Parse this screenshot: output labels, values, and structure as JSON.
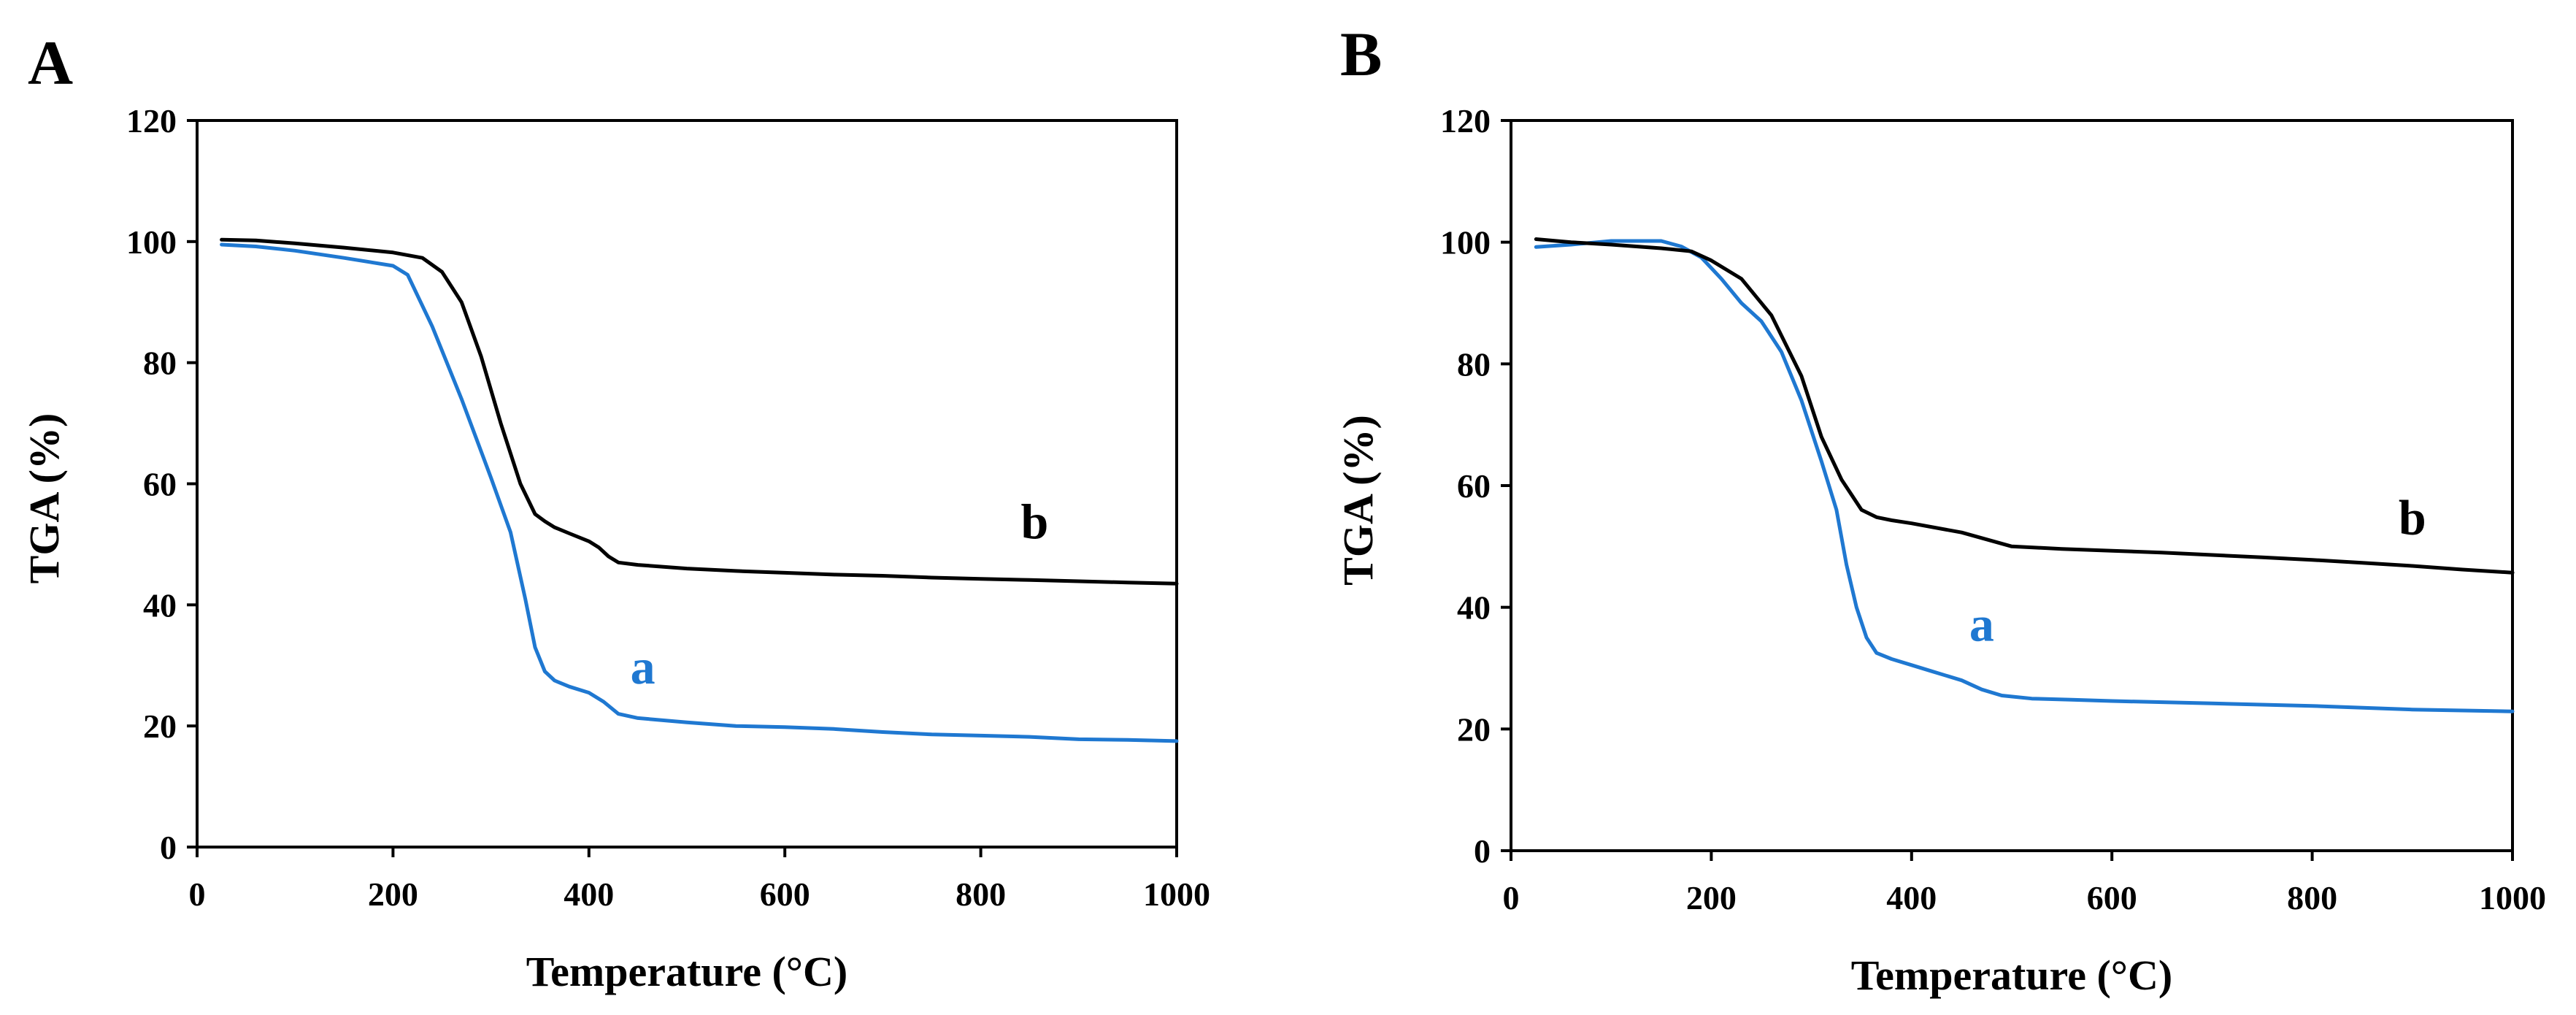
{
  "colors": {
    "a": "#1f78d1",
    "b": "#000000",
    "axis": "#000000"
  },
  "chart_data": [
    {
      "type": "line",
      "panel": "A",
      "xlabel": "Temperature (°C)",
      "ylabel": "TGA (%)",
      "xlim": [
        0,
        1000
      ],
      "ylim": [
        0,
        120
      ],
      "xticks": [
        "0",
        "200",
        "400",
        "600",
        "800",
        "1000"
      ],
      "yticks": [
        "0",
        "20",
        "40",
        "60",
        "80",
        "100",
        "120"
      ],
      "grid": false,
      "series": [
        {
          "name": "a",
          "label_at": [
            455,
            27
          ],
          "x": [
            25,
            60,
            100,
            150,
            200,
            215,
            240,
            270,
            300,
            320,
            335,
            345,
            355,
            365,
            380,
            400,
            415,
            430,
            450,
            500,
            550,
            600,
            650,
            700,
            750,
            800,
            850,
            900,
            950,
            1000
          ],
          "y": [
            99.5,
            99.2,
            98.5,
            97.3,
            96,
            94.5,
            86,
            74,
            61,
            52,
            41,
            33,
            29,
            27.5,
            26.5,
            25.5,
            24,
            22,
            21.3,
            20.6,
            20,
            19.8,
            19.5,
            19,
            18.6,
            18.4,
            18.2,
            17.8,
            17.7,
            17.5
          ]
        },
        {
          "name": "b",
          "label_at": [
            855,
            51
          ],
          "x": [
            25,
            60,
            100,
            150,
            200,
            230,
            250,
            270,
            290,
            310,
            330,
            345,
            355,
            365,
            380,
            400,
            410,
            420,
            430,
            450,
            500,
            550,
            600,
            650,
            700,
            750,
            800,
            850,
            900,
            950,
            1000
          ],
          "y": [
            100.3,
            100.2,
            99.7,
            99,
            98.2,
            97.3,
            95,
            90,
            81,
            70,
            60,
            55,
            53.8,
            52.8,
            51.8,
            50.5,
            49.5,
            48,
            47,
            46.6,
            46,
            45.6,
            45.3,
            45,
            44.8,
            44.5,
            44.3,
            44.1,
            43.9,
            43.7,
            43.5
          ]
        }
      ]
    },
    {
      "type": "line",
      "panel": "B",
      "xlabel": "Temperature (°C)",
      "ylabel": "TGA (%)",
      "xlim": [
        0,
        1000
      ],
      "ylim": [
        0,
        120
      ],
      "xticks": [
        "0",
        "200",
        "400",
        "600",
        "800",
        "1000"
      ],
      "yticks": [
        "0",
        "20",
        "40",
        "60",
        "80",
        "100",
        "120"
      ],
      "grid": false,
      "series": [
        {
          "name": "a",
          "label_at": [
            470,
            34.5
          ],
          "x": [
            25,
            60,
            100,
            150,
            170,
            190,
            210,
            230,
            250,
            270,
            290,
            310,
            325,
            335,
            345,
            355,
            365,
            380,
            400,
            420,
            450,
            470,
            490,
            520,
            560,
            600,
            700,
            800,
            900,
            1000
          ],
          "y": [
            99.2,
            99.6,
            100.2,
            100.2,
            99.3,
            97.5,
            94,
            90,
            87,
            82,
            74,
            64,
            56,
            47,
            40,
            35,
            32.5,
            31.5,
            30.5,
            29.5,
            28,
            26.5,
            25.5,
            25,
            24.8,
            24.6,
            24.2,
            23.8,
            23.2,
            22.9
          ]
        },
        {
          "name": "b",
          "label_at": [
            900,
            52
          ],
          "x": [
            25,
            60,
            100,
            150,
            180,
            200,
            230,
            260,
            290,
            310,
            330,
            350,
            365,
            380,
            400,
            450,
            500,
            550,
            600,
            650,
            700,
            750,
            800,
            850,
            900,
            950,
            1000
          ],
          "y": [
            100.5,
            100,
            99.6,
            99,
            98.5,
            97,
            94,
            88,
            78,
            68,
            61,
            56,
            54.8,
            54.3,
            53.8,
            52.3,
            50,
            49.6,
            49.3,
            49,
            48.6,
            48.2,
            47.8,
            47.3,
            46.8,
            46.2,
            45.7
          ]
        }
      ]
    }
  ]
}
